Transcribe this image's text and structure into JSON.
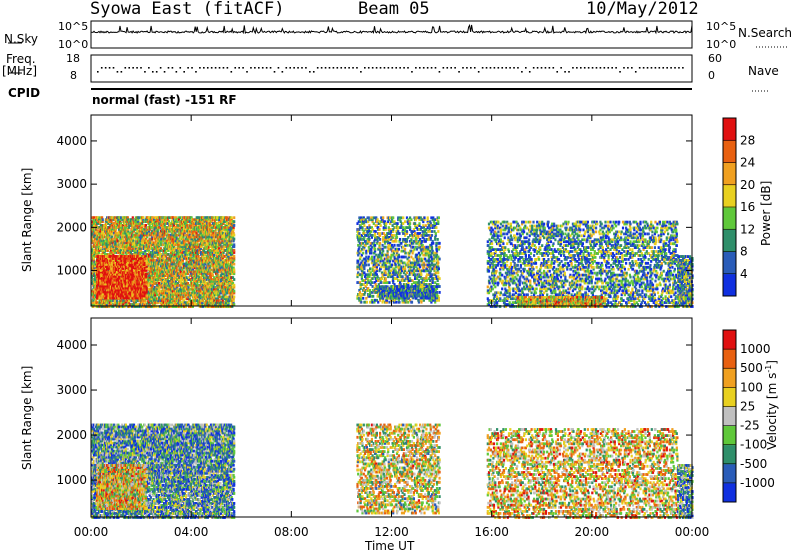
{
  "header": {
    "station": "Syowa East (fitACF)",
    "beam": "Beam 05",
    "date": "10/May/2012"
  },
  "status_panel": {
    "nsky_label": "N.Sky",
    "nsearch_label": "N.Search",
    "freq_label": "Freq.",
    "freq_unit": "[MHz]",
    "nave_label": "Nave",
    "cpid_label": "CPID",
    "noise_tick_top": "10^5",
    "noise_tick_bottom": "10^0",
    "freq_tick_top": "18",
    "freq_tick_bottom": "8",
    "nave_tick_top": "60",
    "nave_tick_bottom": "0",
    "cpid_text": "normal (fast) -151 RF"
  },
  "chart_data": [
    {
      "type": "heatmap",
      "parameter": "Power",
      "ylabel": "Slant Range [km]",
      "xlabel": "",
      "ylim": [
        180,
        4600
      ],
      "yticks": [
        "1000",
        "2000",
        "3000",
        "4000"
      ],
      "xticks": [
        "00:00",
        "04:00",
        "08:00",
        "12:00",
        "16:00",
        "20:00",
        "00:00"
      ],
      "colorbar_label": "Power [dB]",
      "colorbar_ticks": [
        "4",
        "8",
        "12",
        "16",
        "20",
        "24",
        "28"
      ],
      "colorbar_colors": [
        "#1030e0",
        "#2a5cb8",
        "#2f8f6a",
        "#5fc83a",
        "#e8d020",
        "#f0a020",
        "#e86010",
        "#e01010"
      ],
      "echo_regions": [
        {
          "t0": 0.0,
          "t1": 5.7,
          "r0": 200,
          "r1": 2300,
          "density": 0.55,
          "level": 0.55
        },
        {
          "t0": 0.2,
          "t1": 2.2,
          "r0": 400,
          "r1": 1400,
          "density": 0.7,
          "level": 0.9
        },
        {
          "t0": 10.6,
          "t1": 13.9,
          "r0": 300,
          "r1": 2300,
          "density": 0.25,
          "level": 0.35
        },
        {
          "t0": 11.4,
          "t1": 13.8,
          "r0": 400,
          "r1": 700,
          "density": 0.6,
          "level": 0.2
        },
        {
          "t0": 15.8,
          "t1": 23.4,
          "r0": 200,
          "r1": 2200,
          "density": 0.22,
          "level": 0.3
        },
        {
          "t0": 17.0,
          "t1": 20.5,
          "r0": 200,
          "r1": 450,
          "density": 0.5,
          "level": 0.6
        },
        {
          "t0": 23.4,
          "t1": 24.0,
          "r0": 200,
          "r1": 1400,
          "density": 0.5,
          "level": 0.3
        }
      ]
    },
    {
      "type": "heatmap",
      "parameter": "Velocity",
      "ylabel": "Slant Range [km]",
      "xlabel": "Time UT",
      "ylim": [
        180,
        4600
      ],
      "yticks": [
        "1000",
        "2000",
        "3000",
        "4000"
      ],
      "xticks": [
        "00:00",
        "04:00",
        "08:00",
        "12:00",
        "16:00",
        "20:00",
        "00:00"
      ],
      "colorbar_label": "Velocity [m s^-1]",
      "colorbar_ticks": [
        "1000",
        "500",
        "100",
        "25",
        "-25",
        "-100",
        "-500",
        "-1000"
      ],
      "colorbar_colors": [
        "#1030e0",
        "#2a5cb8",
        "#2f8f6a",
        "#5fc83a",
        "#c0c0c0",
        "#e8d020",
        "#f0a020",
        "#e86010",
        "#e01010"
      ],
      "echo_regions": [
        {
          "t0": 0.0,
          "t1": 5.7,
          "r0": 200,
          "r1": 2300,
          "density": 0.5,
          "level": 0.3
        },
        {
          "t0": 0.2,
          "t1": 2.2,
          "r0": 400,
          "r1": 1400,
          "density": 0.6,
          "level": 0.6
        },
        {
          "t0": 10.6,
          "t1": 13.9,
          "r0": 300,
          "r1": 2300,
          "density": 0.25,
          "level": 0.55
        },
        {
          "t0": 15.8,
          "t1": 23.4,
          "r0": 200,
          "r1": 2200,
          "density": 0.22,
          "level": 0.6
        },
        {
          "t0": 23.4,
          "t1": 24.0,
          "r0": 200,
          "r1": 1400,
          "density": 0.5,
          "level": 0.3
        }
      ]
    }
  ]
}
